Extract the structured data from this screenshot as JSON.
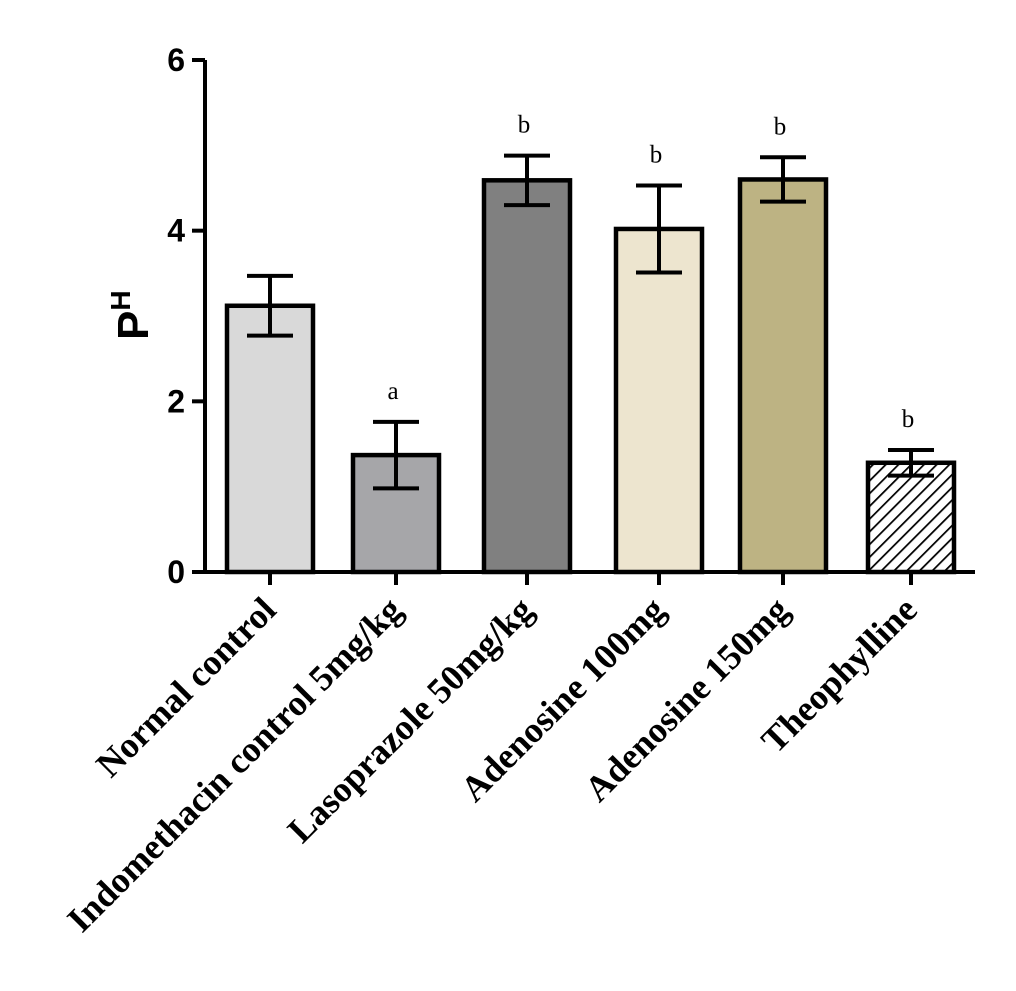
{
  "chart_data": {
    "type": "bar",
    "title": "",
    "xlabel": "",
    "ylabel": {
      "main": "P",
      "superscript": "H"
    },
    "ylim": [
      0,
      6
    ],
    "yticks": [
      "0",
      "2",
      "4",
      "6"
    ],
    "grid": false,
    "legend": "none",
    "categories": [
      "Normal control",
      "Indomethacin control 5mg/kg",
      "Lasoprazole 50mg/kg",
      "Adenosine 100mg",
      "Adenosine 150mg",
      "Theophylline"
    ],
    "values": [
      3.12,
      1.37,
      4.59,
      4.02,
      4.6,
      1.28
    ],
    "error": [
      0.35,
      0.39,
      0.29,
      0.51,
      0.26,
      0.15
    ],
    "significance": [
      "",
      "a",
      "b",
      "b",
      "b",
      "b"
    ],
    "fills": [
      "#d9d9d9",
      "#a6a6a9",
      "#808080",
      "#ede5cf",
      "#bdb383",
      "hatch"
    ]
  }
}
